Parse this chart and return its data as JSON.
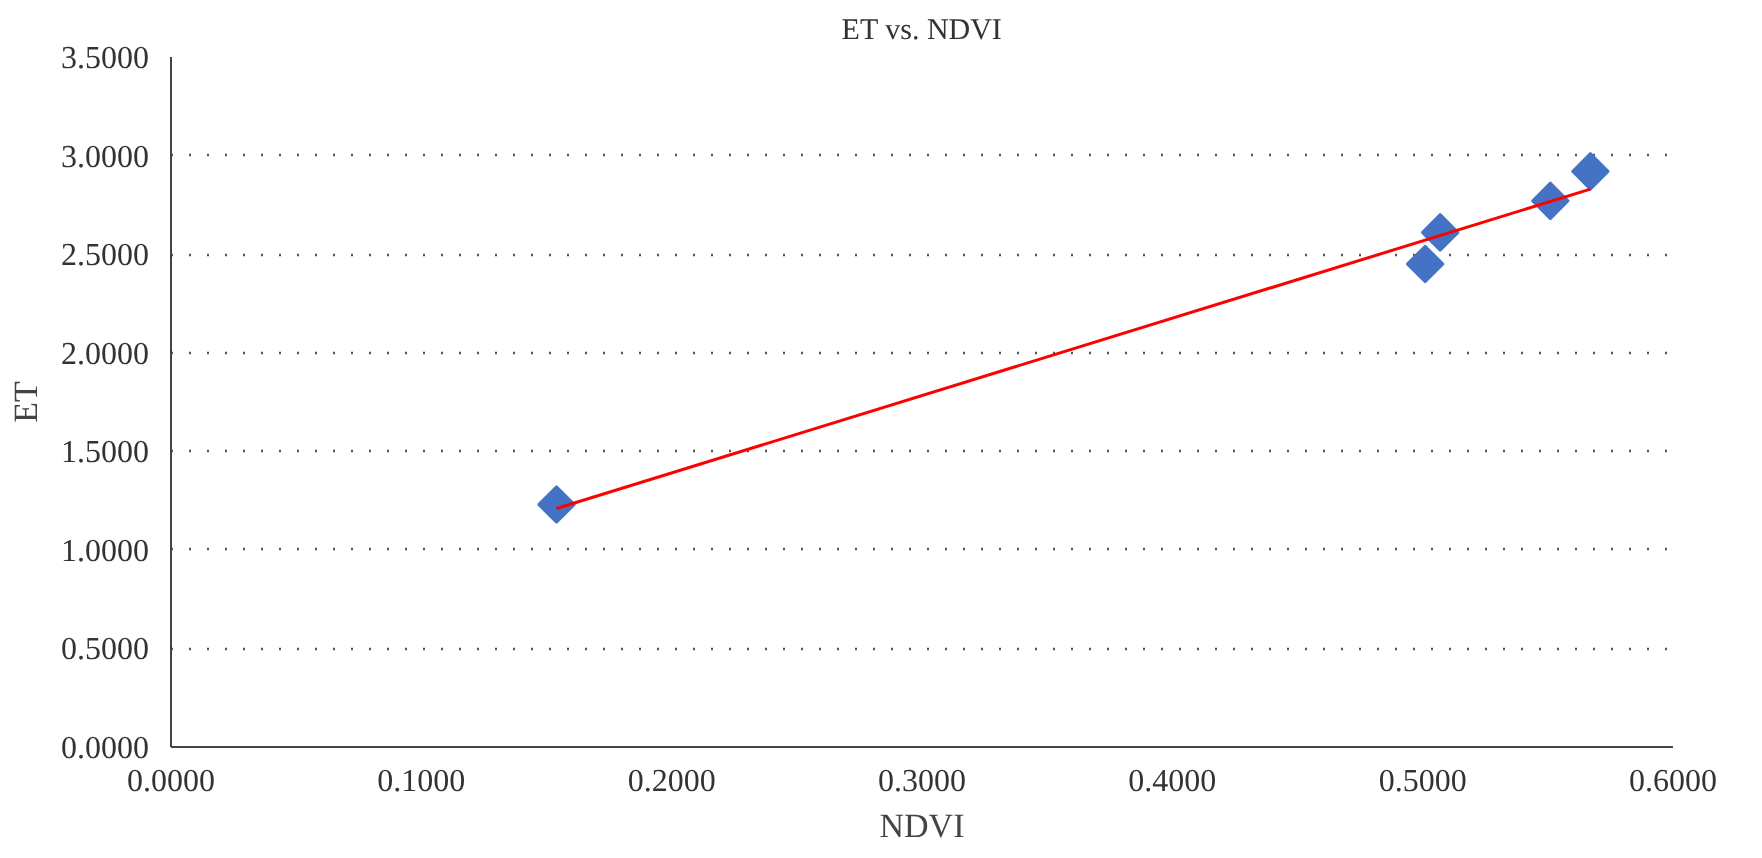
{
  "chart_data": {
    "type": "scatter",
    "title": "ET vs. NDVI",
    "xlabel": "NDVI",
    "ylabel": "ET",
    "series": [
      {
        "color": "#4472c4",
        "marker": "diamond",
        "x": [
          0.154,
          0.501,
          0.507,
          0.551,
          0.567
        ],
        "values": [
          1.23,
          2.45,
          2.61,
          2.77,
          2.92
        ]
      },
      {
        "type": "line",
        "color": "#ff0000",
        "marker": "none",
        "x": [
          0.154,
          0.567
        ],
        "values": [
          1.21,
          2.83
        ]
      }
    ],
    "xlim": [
      0,
      0.6
    ],
    "ylim": [
      0,
      3.5
    ],
    "xticks": [
      {
        "value": 0,
        "label": "0.0000"
      },
      {
        "value": 0.1,
        "label": "0.1000"
      },
      {
        "value": 0.2,
        "label": "0.2000"
      },
      {
        "value": 0.3,
        "label": "0.3000"
      },
      {
        "value": 0.4,
        "label": "0.4000"
      },
      {
        "value": 0.5,
        "label": "0.5000"
      },
      {
        "value": 0.6,
        "label": "0.6000"
      }
    ],
    "yticks": [
      {
        "value": 0,
        "label": "0.0000"
      },
      {
        "value": 0.5,
        "label": "0.5000"
      },
      {
        "value": 1,
        "label": "1.0000"
      },
      {
        "value": 1.5,
        "label": "1.5000"
      },
      {
        "value": 2,
        "label": "2.0000"
      },
      {
        "value": 2.5,
        "label": "2.5000"
      },
      {
        "value": 3,
        "label": "3.0000"
      },
      {
        "value": 3.5,
        "label": "3.5000"
      }
    ],
    "grid": "y"
  }
}
